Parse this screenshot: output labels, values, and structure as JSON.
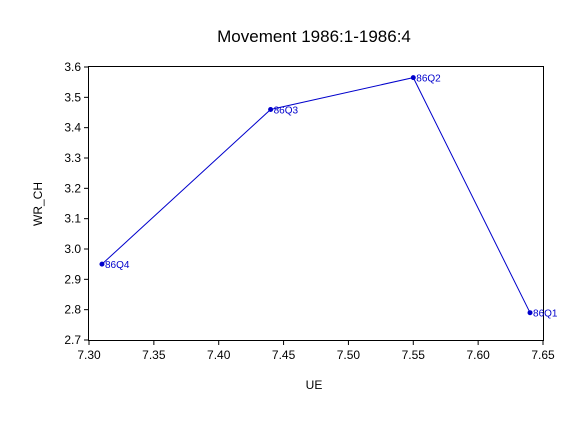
{
  "chart_data": {
    "type": "scatter",
    "title": "Movement 1986:1-1986:4",
    "xlabel": "UE",
    "ylabel": "WR_CH",
    "xlim": [
      7.3,
      7.65
    ],
    "ylim": [
      2.7,
      3.6
    ],
    "x_ticks": [
      "7.30",
      "7.35",
      "7.40",
      "7.45",
      "7.50",
      "7.55",
      "7.60",
      "7.65"
    ],
    "y_ticks": [
      "2.7",
      "2.8",
      "2.9",
      "3.0",
      "3.1",
      "3.2",
      "3.3",
      "3.4",
      "3.5",
      "3.6"
    ],
    "connected": true,
    "grid": false,
    "color": "#0000cc",
    "points": [
      {
        "label": "86Q1",
        "x": 7.64,
        "y": 2.79
      },
      {
        "label": "86Q2",
        "x": 7.55,
        "y": 3.565
      },
      {
        "label": "86Q3",
        "x": 7.44,
        "y": 3.46
      },
      {
        "label": "86Q4",
        "x": 7.31,
        "y": 2.95
      }
    ]
  }
}
